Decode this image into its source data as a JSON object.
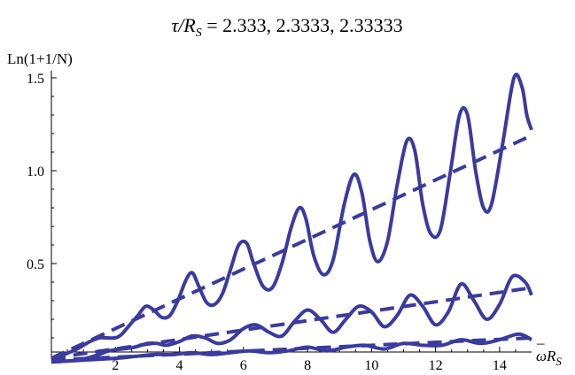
{
  "chart_data": {
    "type": "line",
    "title": "τ/R_S = 2.333,   2.3333,   2.33333",
    "title_parts": {
      "tau": "τ",
      "slash_r": "/R",
      "sub_s": "S",
      "values": " = 2.333,   2.3333,   2.33333"
    },
    "xlabel": "ω̄R_S",
    "xlabel_parts": {
      "omega": "ω",
      "bar": "–",
      "r": "R",
      "sub_s": "S"
    },
    "ylabel": "Ln(1+1/N)",
    "xlim": [
      0,
      15
    ],
    "ylim": [
      -0.05,
      1.55
    ],
    "x_ticks": [
      2,
      4,
      6,
      8,
      10,
      12,
      14
    ],
    "x_tick_labels": [
      "2",
      "4",
      "6",
      "8",
      "10",
      "12",
      "14"
    ],
    "y_ticks": [
      0.5,
      1.0,
      1.5
    ],
    "y_tick_labels": [
      "0.5",
      "1.0",
      "1.5"
    ],
    "grid": false,
    "legend": "none",
    "colors": {
      "series": "#3b3b9e"
    },
    "series": [
      {
        "style": "solid",
        "x": [
          0,
          0.4,
          0.8,
          1.2,
          1.5,
          1.7,
          2.0,
          2.2,
          2.45,
          2.7,
          2.95,
          3.2,
          3.45,
          3.7,
          3.95,
          4.2,
          4.4,
          4.6,
          4.85,
          5.1,
          5.35,
          5.6,
          5.85,
          6.1,
          6.3,
          6.6,
          6.9,
          7.2,
          7.5,
          7.75,
          7.95,
          8.2,
          8.5,
          8.8,
          9.15,
          9.45,
          9.7,
          9.95,
          10.2,
          10.5,
          10.8,
          11.1,
          11.35,
          11.6,
          11.85,
          12.15,
          12.45,
          12.75,
          13.0,
          13.25,
          13.5,
          13.75,
          14.1,
          14.45,
          14.7,
          14.85,
          15.0
        ],
        "y": [
          -0.02,
          0.01,
          0.04,
          0.08,
          0.1,
          0.1,
          0.1,
          0.12,
          0.17,
          0.22,
          0.27,
          0.25,
          0.21,
          0.22,
          0.3,
          0.41,
          0.45,
          0.38,
          0.29,
          0.28,
          0.34,
          0.47,
          0.6,
          0.61,
          0.51,
          0.38,
          0.37,
          0.5,
          0.7,
          0.8,
          0.74,
          0.54,
          0.44,
          0.52,
          0.82,
          0.98,
          0.88,
          0.62,
          0.51,
          0.62,
          0.92,
          1.16,
          1.11,
          0.82,
          0.66,
          0.68,
          0.98,
          1.3,
          1.3,
          1.0,
          0.8,
          0.82,
          1.15,
          1.5,
          1.45,
          1.3,
          1.22
        ]
      },
      {
        "style": "dashed",
        "x": [
          0,
          15
        ],
        "y": [
          -0.01,
          1.19
        ]
      },
      {
        "style": "solid",
        "x": [
          0,
          0.8,
          1.3,
          1.8,
          2.2,
          2.6,
          3.0,
          3.3,
          3.6,
          4.0,
          4.4,
          4.8,
          5.2,
          5.6,
          6.0,
          6.4,
          6.8,
          7.2,
          7.6,
          8.0,
          8.4,
          8.8,
          9.2,
          9.6,
          10.0,
          10.4,
          10.8,
          11.2,
          11.6,
          12.0,
          12.4,
          12.8,
          13.2,
          13.6,
          14.0,
          14.4,
          14.8,
          15.0
        ],
        "y": [
          -0.03,
          -0.02,
          0.0,
          0.03,
          0.04,
          0.05,
          0.07,
          0.07,
          0.06,
          0.08,
          0.11,
          0.1,
          0.07,
          0.09,
          0.15,
          0.17,
          0.13,
          0.11,
          0.19,
          0.25,
          0.2,
          0.13,
          0.2,
          0.27,
          0.24,
          0.16,
          0.22,
          0.33,
          0.27,
          0.17,
          0.24,
          0.39,
          0.3,
          0.2,
          0.28,
          0.43,
          0.4,
          0.33
        ]
      },
      {
        "style": "dashed",
        "x": [
          0,
          15
        ],
        "y": [
          -0.01,
          0.37
        ]
      },
      {
        "style": "solid",
        "x": [
          0,
          1,
          2,
          2.6,
          3.2,
          3.8,
          4.4,
          5.0,
          5.6,
          6.2,
          6.8,
          7.4,
          8.0,
          8.6,
          9.2,
          9.8,
          10.4,
          11.0,
          11.6,
          12.2,
          12.8,
          13.4,
          14.0,
          14.6,
          15.0
        ],
        "y": [
          -0.03,
          -0.02,
          -0.01,
          0.0,
          0.01,
          0.01,
          0.02,
          0.01,
          0.02,
          0.03,
          0.02,
          0.03,
          0.05,
          0.03,
          0.05,
          0.06,
          0.04,
          0.07,
          0.06,
          0.06,
          0.09,
          0.07,
          0.09,
          0.12,
          0.09
        ]
      },
      {
        "style": "dashed",
        "x": [
          0,
          15
        ],
        "y": [
          -0.02,
          0.1
        ]
      }
    ]
  }
}
